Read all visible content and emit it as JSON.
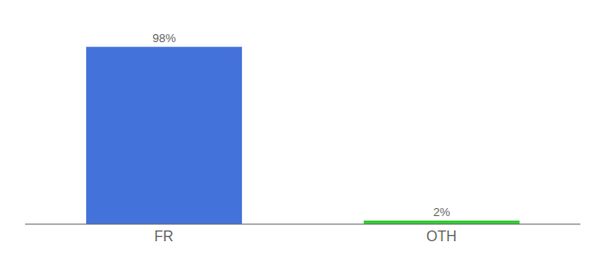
{
  "chart_data": {
    "type": "bar",
    "categories": [
      "FR",
      "OTH"
    ],
    "values": [
      98,
      2
    ],
    "colors": [
      "#4472db",
      "#33cc33"
    ],
    "ylim": [
      0,
      108
    ],
    "data_labels": true,
    "value_labels": [
      "98%",
      "2%"
    ],
    "tick_labels": "x"
  }
}
